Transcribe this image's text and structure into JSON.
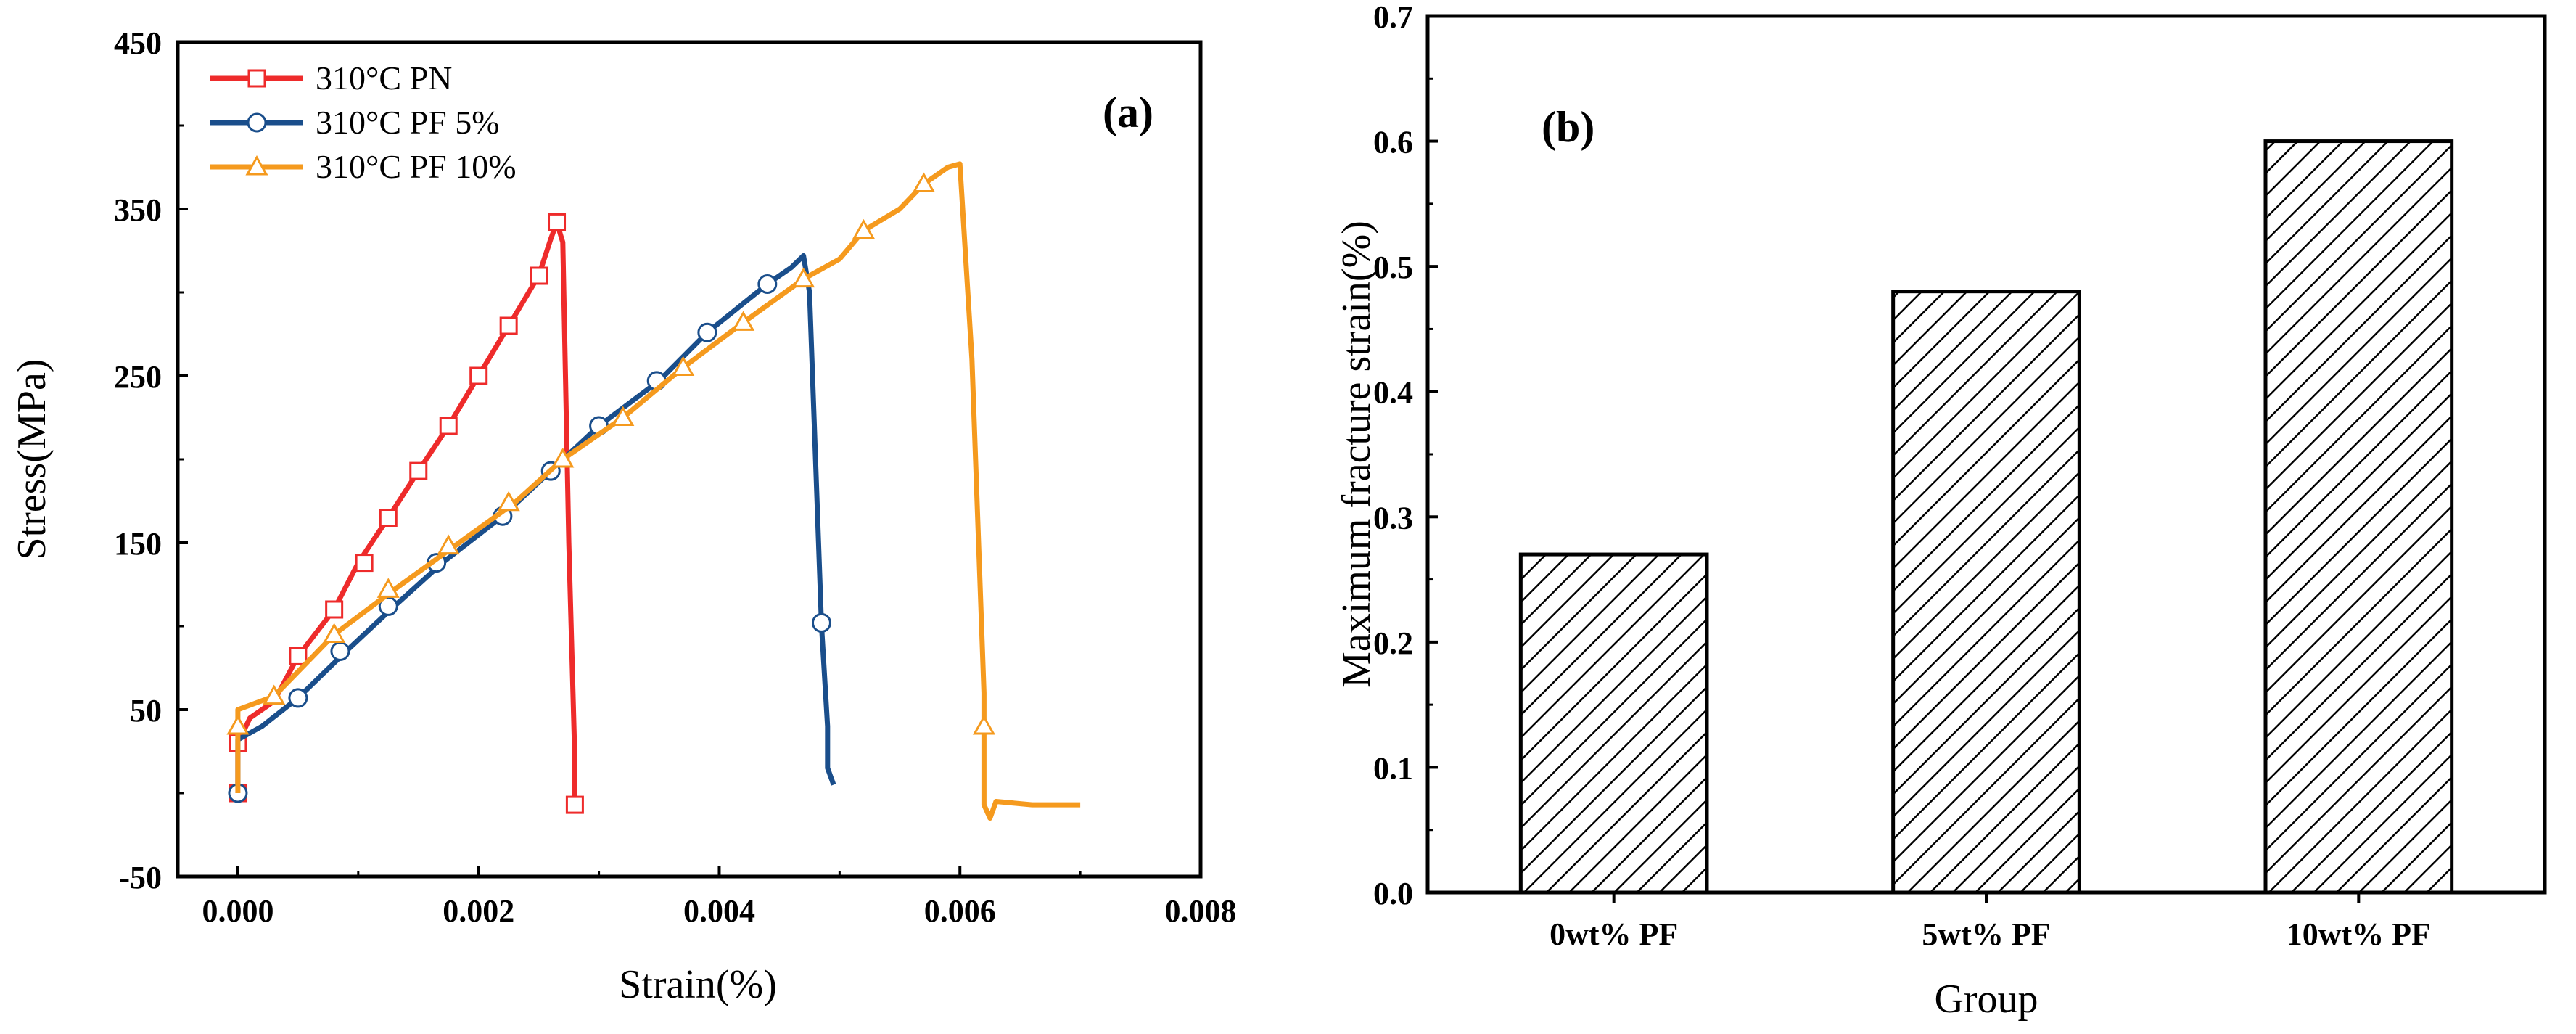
{
  "chart_data": [
    {
      "type": "line",
      "panel_label": "(a)",
      "xlabel": "Strain(%)",
      "ylabel": "Stress(MPa)",
      "xlim": [
        -0.0005,
        0.008
      ],
      "ylim": [
        -50,
        450
      ],
      "x_ticks": [
        "0.000",
        "0.002",
        "0.004",
        "0.006",
        "0.008"
      ],
      "x_tick_values": [
        0,
        0.002,
        0.004,
        0.006,
        0.008
      ],
      "y_ticks": [
        "-50",
        "50",
        "150",
        "250",
        "350",
        "450"
      ],
      "y_tick_values": [
        -50,
        50,
        150,
        250,
        350,
        450
      ],
      "legend_position": "top-left",
      "series": [
        {
          "name": "310°C PN",
          "color": "#ee2b2b",
          "marker": "square",
          "points": [
            [
              0,
              0
            ],
            [
              0,
              30
            ],
            [
              0.0001,
              45
            ],
            [
              0.0003,
              55
            ],
            [
              0.0005,
              82
            ],
            [
              0.0008,
              110
            ],
            [
              0.001,
              138
            ],
            [
              0.00125,
              165
            ],
            [
              0.0015,
              193
            ],
            [
              0.00175,
              220
            ],
            [
              0.002,
              250
            ],
            [
              0.00225,
              280
            ],
            [
              0.0025,
              310
            ],
            [
              0.0026,
              332
            ],
            [
              0.00265,
              342
            ],
            [
              0.0027,
              330
            ],
            [
              0.00275,
              150
            ],
            [
              0.0028,
              20
            ],
            [
              0.0028,
              -10
            ],
            [
              0.00285,
              -7
            ]
          ],
          "marker_points": [
            [
              0,
              0
            ],
            [
              0,
              30
            ],
            [
              0.0005,
              82
            ],
            [
              0.0008,
              110
            ],
            [
              0.00105,
              138
            ],
            [
              0.00125,
              165
            ],
            [
              0.0015,
              193
            ],
            [
              0.00175,
              220
            ],
            [
              0.002,
              250
            ],
            [
              0.00225,
              280
            ],
            [
              0.0025,
              310
            ],
            [
              0.00265,
              342
            ],
            [
              0.0028,
              -7
            ]
          ]
        },
        {
          "name": "310°C PF 5%",
          "color": "#1a4e8b",
          "marker": "circle",
          "points": [
            [
              0,
              0
            ],
            [
              0,
              32
            ],
            [
              0.0002,
              40
            ],
            [
              0.0005,
              57
            ],
            [
              0.0009,
              85
            ],
            [
              0.0013,
              112
            ],
            [
              0.0017,
              138
            ],
            [
              0.0022,
              166
            ],
            [
              0.0026,
              193
            ],
            [
              0.003,
              220
            ],
            [
              0.0035,
              247
            ],
            [
              0.0039,
              276
            ],
            [
              0.0044,
              305
            ],
            [
              0.0046,
              315
            ],
            [
              0.0047,
              322
            ],
            [
              0.00475,
              300
            ],
            [
              0.0048,
              200
            ],
            [
              0.00485,
              100
            ],
            [
              0.0049,
              40
            ],
            [
              0.0049,
              15
            ],
            [
              0.00495,
              5
            ]
          ],
          "marker_points": [
            [
              0,
              0
            ],
            [
              0.0005,
              57
            ],
            [
              0.00085,
              85
            ],
            [
              0.00125,
              112
            ],
            [
              0.00165,
              138
            ],
            [
              0.0022,
              166
            ],
            [
              0.0026,
              193
            ],
            [
              0.003,
              220
            ],
            [
              0.00348,
              247
            ],
            [
              0.0039,
              276
            ],
            [
              0.0044,
              305
            ],
            [
              0.00485,
              102
            ]
          ]
        },
        {
          "name": "310°C PF 10%",
          "color": "#f59a1e",
          "marker": "triangle",
          "points": [
            [
              0,
              0
            ],
            [
              0,
              40
            ],
            [
              0,
              50
            ],
            [
              0.0003,
              58
            ],
            [
              0.0008,
              95
            ],
            [
              0.0013,
              122
            ],
            [
              0.0018,
              148
            ],
            [
              0.0023,
              174
            ],
            [
              0.0027,
              200
            ],
            [
              0.0032,
              225
            ],
            [
              0.0037,
              255
            ],
            [
              0.0042,
              282
            ],
            [
              0.0047,
              308
            ],
            [
              0.005,
              320
            ],
            [
              0.0052,
              337
            ],
            [
              0.0055,
              350
            ],
            [
              0.0057,
              365
            ],
            [
              0.0059,
              375
            ],
            [
              0.006,
              377
            ],
            [
              0.0061,
              260
            ],
            [
              0.0062,
              60
            ],
            [
              0.0062,
              40
            ],
            [
              0.0062,
              -7
            ],
            [
              0.00625,
              -15
            ],
            [
              0.0063,
              -5
            ],
            [
              0.0066,
              -7
            ],
            [
              0.007,
              -7
            ]
          ],
          "marker_points": [
            [
              0,
              40
            ],
            [
              0.0003,
              58
            ],
            [
              0.0008,
              95
            ],
            [
              0.00125,
              122
            ],
            [
              0.00175,
              148
            ],
            [
              0.00225,
              174
            ],
            [
              0.0027,
              200
            ],
            [
              0.0032,
              225
            ],
            [
              0.0037,
              255
            ],
            [
              0.0042,
              282
            ],
            [
              0.0047,
              308
            ],
            [
              0.0052,
              337
            ],
            [
              0.0057,
              365
            ],
            [
              0.0062,
              40
            ]
          ]
        }
      ]
    },
    {
      "type": "bar",
      "panel_label": "(b)",
      "xlabel": "Group",
      "ylabel": "Maximum fracture strain(%)",
      "categories": [
        "0wt% PF",
        "5wt% PF",
        "10wt% PF"
      ],
      "values": [
        0.27,
        0.48,
        0.6
      ],
      "ylim": [
        0,
        0.7
      ],
      "y_ticks": [
        "0.0",
        "0.1",
        "0.2",
        "0.3",
        "0.4",
        "0.5",
        "0.6",
        "0.7"
      ],
      "y_tick_values": [
        0,
        0.1,
        0.2,
        0.3,
        0.4,
        0.5,
        0.6,
        0.7
      ],
      "bar_fill": "hatched",
      "grid": false
    }
  ]
}
